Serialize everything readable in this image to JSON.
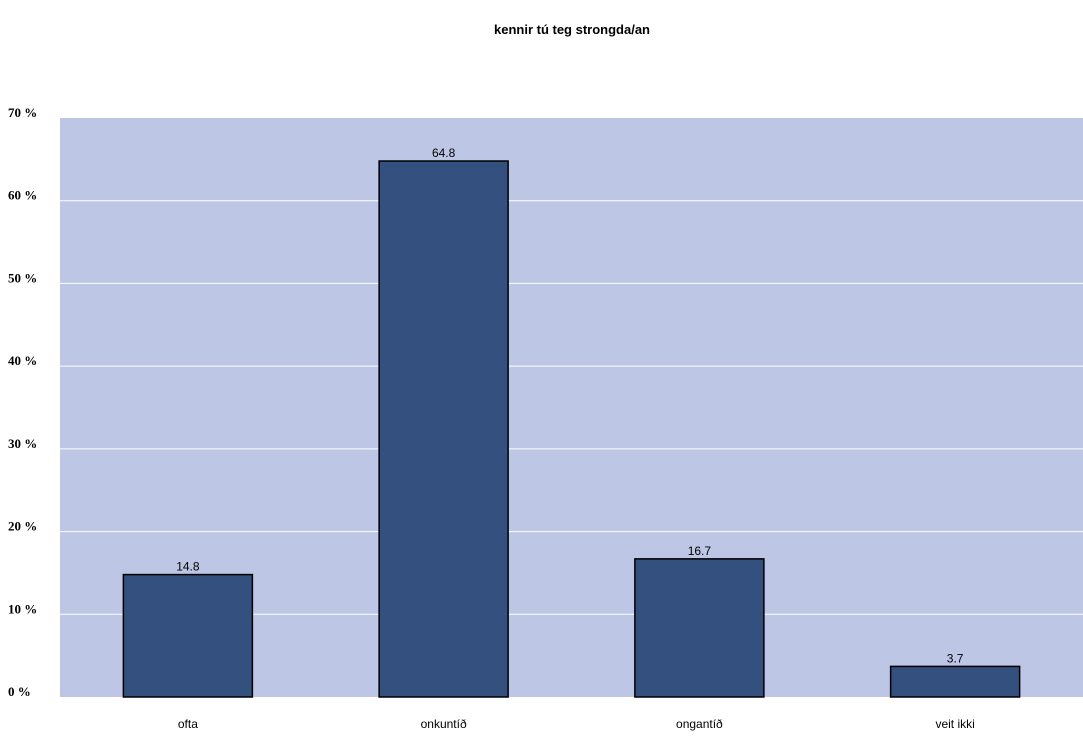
{
  "chart_data": {
    "type": "bar",
    "title": "kennir tú teg strongda/an",
    "categories": [
      "ofta",
      "onkuntíð",
      "ongantíð",
      "veit ikki"
    ],
    "values": [
      14.8,
      64.8,
      16.7,
      3.7
    ],
    "data_labels": [
      "14.8",
      "64.8",
      "16.7",
      "3.7"
    ],
    "ylim": [
      0,
      70
    ],
    "y_ticks": [
      {
        "value": 0,
        "label": "0 %"
      },
      {
        "value": 10,
        "label": "10 %"
      },
      {
        "value": 20,
        "label": "20 %"
      },
      {
        "value": 30,
        "label": "30 %"
      },
      {
        "value": 40,
        "label": "40 %"
      },
      {
        "value": 50,
        "label": "50 %"
      },
      {
        "value": 60,
        "label": "60 %"
      },
      {
        "value": 70,
        "label": "70 %"
      }
    ],
    "grid": true,
    "legend": "none",
    "colors": {
      "plot_background": "#bec6e6",
      "bar_fill": "#33507f",
      "bar_stroke": "#000000",
      "gridline": "#ffffff"
    }
  }
}
